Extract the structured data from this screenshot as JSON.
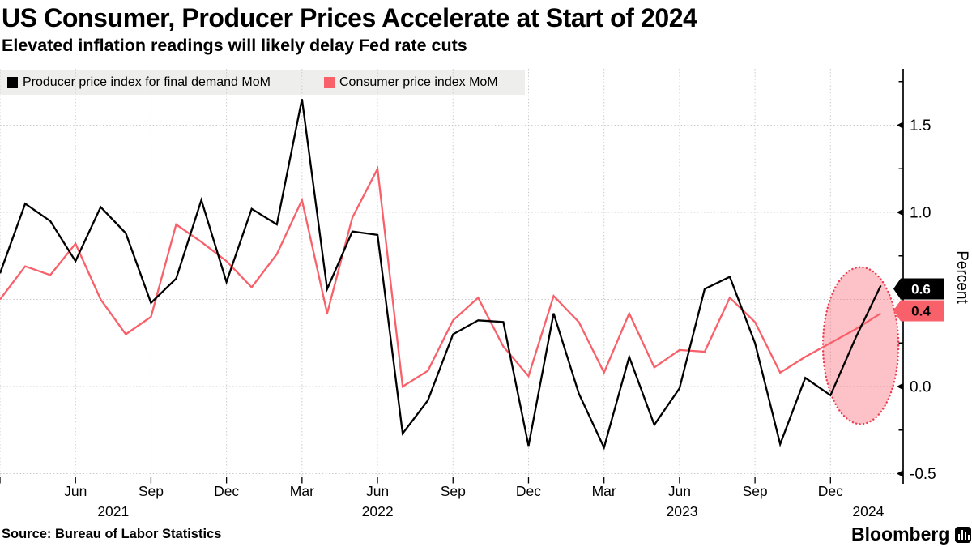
{
  "header": {
    "title": "US Consumer, Producer Prices Accelerate at Start of 2024",
    "subtitle": "Elevated inflation readings will likely delay Fed rate cuts"
  },
  "legend": {
    "items": [
      {
        "label": "Producer price index for final demand MoM",
        "color": "#000000"
      },
      {
        "label": "Consumer price index MoM",
        "color": "#f8606a"
      }
    ],
    "strip_color": "#eeeeec"
  },
  "axis": {
    "unit_label": "Percent",
    "y_tick_labels": [
      "1.5",
      "1.0",
      "0.0",
      "-0.5"
    ],
    "y_tick_values": [
      1.5,
      1.0,
      0.0,
      -0.5
    ],
    "y_minor_tick_values": [
      1.75,
      1.25,
      0.75,
      0.25,
      -0.25
    ],
    "grid_color": "#c9c9c9",
    "axis_color": "#000000"
  },
  "chart_data": {
    "type": "line",
    "title": "US Consumer, Producer Prices Accelerate at Start of 2024",
    "xlabel": "",
    "ylabel": "Percent",
    "ylim": [
      -0.66,
      1.82
    ],
    "grid": "dotted",
    "legend_position": "top-left",
    "x": [
      "Mar 2021",
      "Apr 2021",
      "May 2021",
      "Jun 2021",
      "Jul 2021",
      "Aug 2021",
      "Sep 2021",
      "Oct 2021",
      "Nov 2021",
      "Dec 2021",
      "Jan 2022",
      "Feb 2022",
      "Mar 2022",
      "Apr 2022",
      "May 2022",
      "Jun 2022",
      "Jul 2022",
      "Aug 2022",
      "Sep 2022",
      "Oct 2022",
      "Nov 2022",
      "Dec 2022",
      "Jan 2023",
      "Feb 2023",
      "Mar 2023",
      "Apr 2023",
      "May 2023",
      "Jun 2023",
      "Jul 2023",
      "Aug 2023",
      "Sep 2023",
      "Oct 2023",
      "Nov 2023",
      "Dec 2023",
      "Jan 2024",
      "Feb 2024"
    ],
    "series": [
      {
        "name": "Producer price index for final demand MoM",
        "color": "#000000",
        "end_label": "0.6",
        "values": [
          0.65,
          1.05,
          0.95,
          0.72,
          1.03,
          0.88,
          0.48,
          0.62,
          1.07,
          0.6,
          1.02,
          0.93,
          1.65,
          0.56,
          0.89,
          0.87,
          -0.27,
          -0.08,
          0.3,
          0.38,
          0.37,
          -0.34,
          0.42,
          -0.04,
          -0.35,
          0.17,
          -0.22,
          -0.01,
          0.56,
          0.63,
          0.25,
          -0.33,
          0.05,
          -0.05,
          0.28,
          0.58
        ]
      },
      {
        "name": "Consumer price index MoM",
        "color": "#f8606a",
        "end_label": "0.4",
        "values": [
          0.5,
          0.69,
          0.64,
          0.82,
          0.5,
          0.3,
          0.4,
          0.93,
          0.83,
          0.72,
          0.57,
          0.76,
          1.07,
          0.42,
          0.97,
          1.25,
          0.0,
          0.09,
          0.38,
          0.51,
          0.23,
          0.06,
          0.52,
          0.37,
          0.08,
          0.42,
          0.11,
          0.21,
          0.2,
          0.51,
          0.37,
          0.08,
          0.17,
          0.25,
          0.33,
          0.42
        ]
      }
    ],
    "x_ticks": [
      {
        "label": "",
        "month_index": 0
      },
      {
        "label": "Jun",
        "month_index": 3
      },
      {
        "label": "Sep",
        "month_index": 6
      },
      {
        "label": "Dec",
        "month_index": 9
      },
      {
        "label": "Mar",
        "month_index": 12
      },
      {
        "label": "Jun",
        "month_index": 15
      },
      {
        "label": "Sep",
        "month_index": 18
      },
      {
        "label": "Dec",
        "month_index": 21
      },
      {
        "label": "Mar",
        "month_index": 24
      },
      {
        "label": "Jun",
        "month_index": 27
      },
      {
        "label": "Sep",
        "month_index": 30
      },
      {
        "label": "Dec",
        "month_index": 33
      }
    ],
    "year_labels": [
      {
        "label": "2021",
        "month_index": 4.5
      },
      {
        "label": "2022",
        "month_index": 15
      },
      {
        "label": "2023",
        "month_index": 27.1
      },
      {
        "label": "2024",
        "month_index": 34.5
      }
    ],
    "highlight_ellipse": {
      "center_month_index": 34.2,
      "center_value": 0.235,
      "rx_months": 1.5,
      "ry_value": 0.45,
      "stroke_color": "#ef3e52",
      "fill_color": "rgba(246,95,110,0.38)"
    }
  },
  "value_tags": [
    {
      "text": "0.6",
      "bg": "#000000",
      "fg": "#ffffff"
    },
    {
      "text": "0.4",
      "bg": "#f8606a",
      "fg": "#000000"
    }
  ],
  "footer": {
    "source": "Source: Bureau of Labor Statistics",
    "brand": "Bloomberg"
  }
}
